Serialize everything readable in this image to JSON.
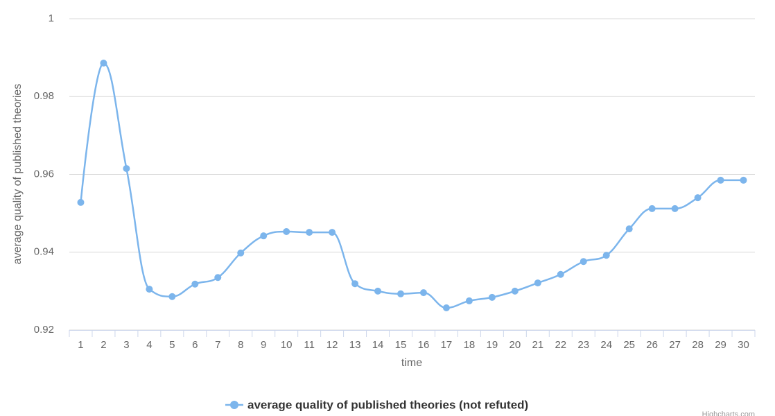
{
  "chart_data": {
    "type": "line",
    "x_label": "time",
    "y_label": "average quality of published theories",
    "categories": [
      "1",
      "2",
      "3",
      "4",
      "5",
      "6",
      "7",
      "8",
      "9",
      "10",
      "11",
      "12",
      "13",
      "14",
      "15",
      "16",
      "17",
      "18",
      "19",
      "20",
      "21",
      "22",
      "23",
      "24",
      "25",
      "26",
      "27",
      "28",
      "29",
      "30"
    ],
    "series": [
      {
        "name": "average quality of published theories (not refuted)",
        "color": "#7cb5ec",
        "values": [
          0.9528,
          0.9886,
          0.9615,
          0.9305,
          0.9286,
          0.9318,
          0.9335,
          0.9398,
          0.9442,
          0.9453,
          0.9451,
          0.9451,
          0.9319,
          0.93,
          0.9293,
          0.9296,
          0.9257,
          0.9275,
          0.9284,
          0.93,
          0.9321,
          0.9343,
          0.9376,
          0.9392,
          0.946,
          0.9512,
          0.9512,
          0.954,
          0.9585,
          0.9585
        ]
      }
    ],
    "ylim": [
      0.92,
      1
    ],
    "yticks": [
      0.92,
      0.94,
      0.96,
      0.98,
      1
    ],
    "grid": true,
    "smooth": true,
    "legend": "bottom",
    "credits": "Highcharts.com"
  }
}
